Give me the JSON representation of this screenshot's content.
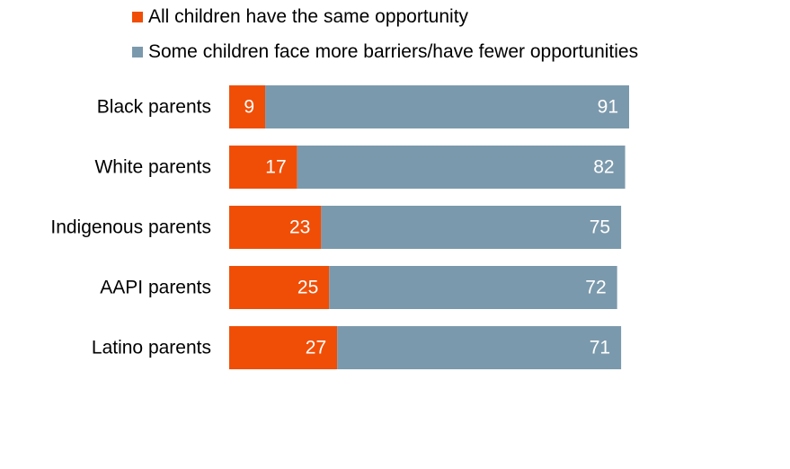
{
  "chart_data": {
    "type": "bar",
    "orientation": "horizontal",
    "stacked": true,
    "categories": [
      "Black parents",
      "White parents",
      "Indigenous parents",
      "AAPI parents",
      "Latino parents"
    ],
    "series": [
      {
        "name": "All children have the same opportunity",
        "values": [
          9,
          17,
          23,
          25,
          27
        ],
        "color": "#f04e07"
      },
      {
        "name": "Some children face more barriers/have fewer opportunities",
        "values": [
          91,
          82,
          75,
          72,
          71
        ],
        "color": "#7b99ac"
      }
    ],
    "title": "",
    "xlabel": "",
    "ylabel": "",
    "xlim": [
      0,
      100
    ],
    "grid": false,
    "legend_position": "top",
    "data_labels": true
  }
}
